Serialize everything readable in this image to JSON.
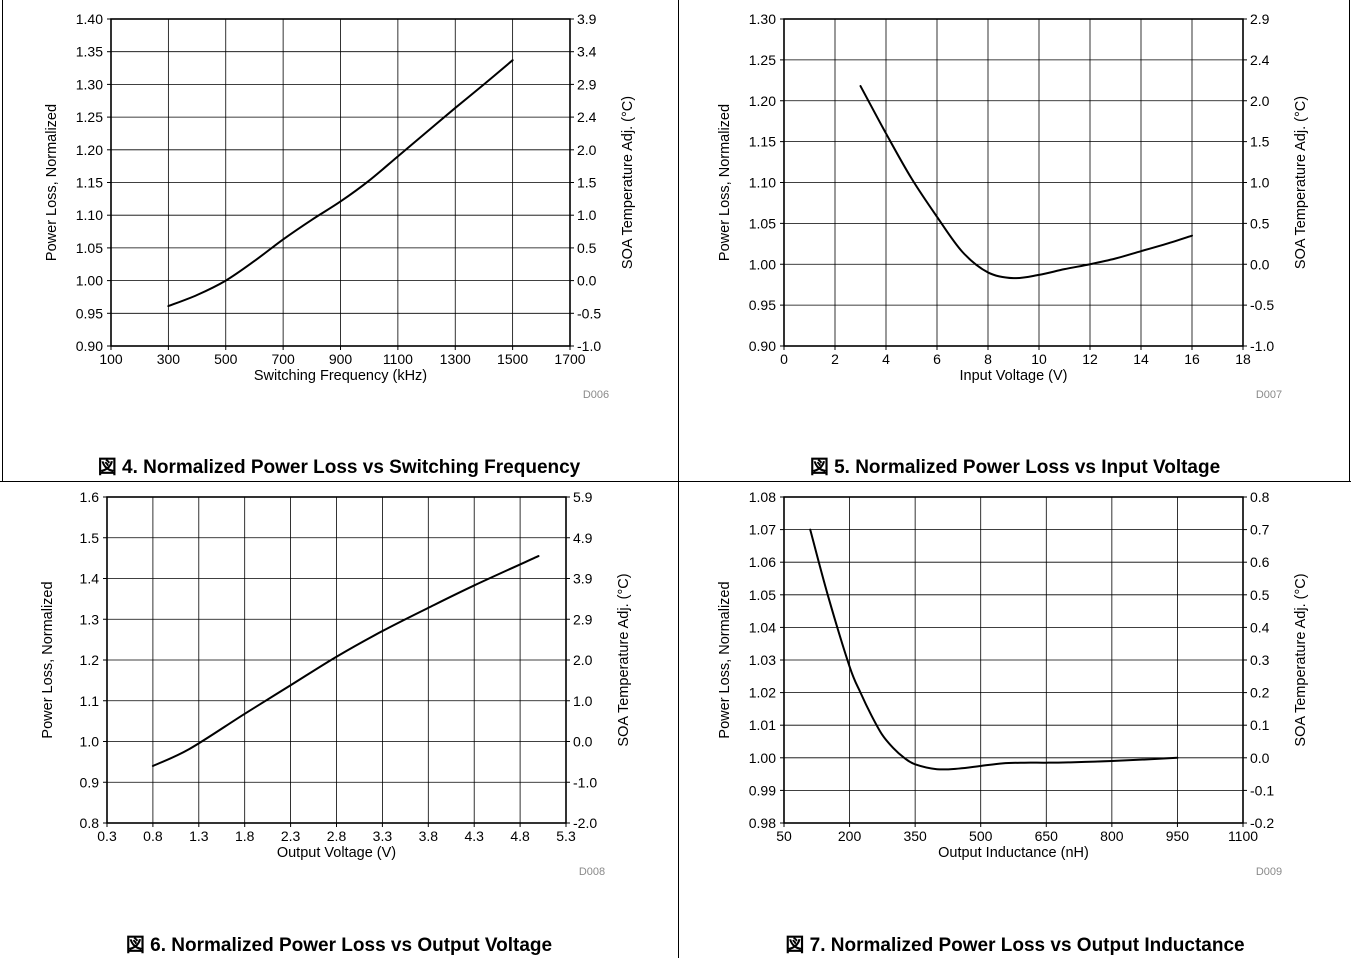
{
  "chart_data": [
    {
      "type": "line",
      "caption": "図 4. Normalized Power Loss vs Switching Frequency",
      "xlabel": "Switching Frequency (kHz)",
      "ylabel": "Power Loss, Normalized",
      "y2label": "SOA Temperature Adj. (°C)",
      "code": "D006",
      "xlim": [
        100,
        1700
      ],
      "ylim": [
        0.9,
        1.4
      ],
      "y2lim": [
        -1.0,
        3.9
      ],
      "xticks": [
        "100",
        "300",
        "500",
        "700",
        "900",
        "1100",
        "1300",
        "1500",
        "1700"
      ],
      "yticks": [
        "0.90",
        "0.95",
        "1.00",
        "1.05",
        "1.10",
        "1.15",
        "1.20",
        "1.25",
        "1.30",
        "1.35",
        "1.40"
      ],
      "y2ticks": [
        "-1.0",
        "-0.5",
        "0.0",
        "0.5",
        "1.0",
        "1.5",
        "2.0",
        "2.4",
        "2.9",
        "3.4",
        "3.9"
      ],
      "grid": true,
      "series": [
        {
          "x": [
            300,
            400,
            500,
            600,
            700,
            800,
            900,
            1000,
            1100,
            1200,
            1300,
            1400,
            1500
          ],
          "y": [
            0.961,
            0.978,
            1.0,
            1.03,
            1.063,
            1.093,
            1.121,
            1.153,
            1.19,
            1.227,
            1.264,
            1.3,
            1.337
          ]
        }
      ]
    },
    {
      "type": "line",
      "caption": "図 5. Normalized Power Loss vs Input Voltage",
      "xlabel": "Input Voltage (V)",
      "ylabel": "Power Loss, Normalized",
      "y2label": "SOA Temperature Adj. (°C)",
      "code": "D007",
      "xlim": [
        0,
        18
      ],
      "ylim": [
        0.9,
        1.3
      ],
      "y2lim": [
        -1.0,
        2.9
      ],
      "xticks": [
        "0",
        "2",
        "4",
        "6",
        "8",
        "10",
        "12",
        "14",
        "16",
        "18"
      ],
      "yticks": [
        "0.90",
        "0.95",
        "1.00",
        "1.05",
        "1.10",
        "1.15",
        "1.20",
        "1.25",
        "1.30"
      ],
      "y2ticks": [
        "-1.0",
        "-0.5",
        "0.0",
        "0.5",
        "1.0",
        "1.5",
        "2.0",
        "2.4",
        "2.9"
      ],
      "grid": true,
      "series": [
        {
          "x": [
            3,
            4,
            5,
            6,
            7,
            8,
            9,
            10,
            11,
            12,
            13,
            14,
            15,
            16
          ],
          "y": [
            1.218,
            1.16,
            1.105,
            1.058,
            1.015,
            0.99,
            0.983,
            0.987,
            0.994,
            1.0,
            1.007,
            1.016,
            1.025,
            1.035
          ]
        }
      ]
    },
    {
      "type": "line",
      "caption": "図 6. Normalized Power Loss vs Output Voltage",
      "xlabel": "Output Voltage (V)",
      "ylabel": "Power Loss, Normalized",
      "y2label": "SOA Temperature Adj. (°C)",
      "code": "D008",
      "xlim": [
        0.3,
        5.3
      ],
      "ylim": [
        0.8,
        1.6
      ],
      "y2lim": [
        -2.0,
        5.9
      ],
      "xticks": [
        "0.3",
        "0.8",
        "1.3",
        "1.8",
        "2.3",
        "2.8",
        "3.3",
        "3.8",
        "4.3",
        "4.8",
        "5.3"
      ],
      "yticks": [
        "0.8",
        "0.9",
        "1.0",
        "1.1",
        "1.2",
        "1.3",
        "1.4",
        "1.5",
        "1.6"
      ],
      "y2ticks": [
        "-2.0",
        "-1.0",
        "0.0",
        "1.0",
        "2.0",
        "2.9",
        "3.9",
        "4.9",
        "5.9"
      ],
      "grid": true,
      "series": [
        {
          "x": [
            0.8,
            1.2,
            1.8,
            2.3,
            2.8,
            3.3,
            3.8,
            4.3,
            5.0
          ],
          "y": [
            0.94,
            0.982,
            1.068,
            1.138,
            1.208,
            1.271,
            1.328,
            1.383,
            1.455
          ]
        }
      ]
    },
    {
      "type": "line",
      "caption": "図 7. Normalized Power Loss vs Output Inductance",
      "xlabel": "Output Inductance (nH)",
      "ylabel": "Power Loss, Normalized",
      "y2label": "SOA Temperature Adj. (°C)",
      "code": "D009",
      "xlim": [
        50,
        1100
      ],
      "ylim": [
        0.98,
        1.08
      ],
      "y2lim": [
        -0.2,
        0.8
      ],
      "xticks": [
        "50",
        "200",
        "350",
        "500",
        "650",
        "800",
        "950",
        "1100"
      ],
      "yticks": [
        "0.98",
        "0.99",
        "1.00",
        "1.01",
        "1.02",
        "1.03",
        "1.04",
        "1.05",
        "1.06",
        "1.07",
        "1.08"
      ],
      "y2ticks": [
        "-0.2",
        "-0.1",
        "0.0",
        "0.1",
        "0.2",
        "0.3",
        "0.4",
        "0.5",
        "0.6",
        "0.7",
        "0.8"
      ],
      "grid": true,
      "series": [
        {
          "x": [
            110,
            150,
            200,
            225,
            250,
            275,
            300,
            325,
            350,
            400,
            450,
            500,
            550,
            600,
            650,
            700,
            800,
            950
          ],
          "y": [
            1.07,
            1.05,
            1.028,
            1.02,
            1.013,
            1.007,
            1.003,
            1.0,
            0.998,
            0.9965,
            0.9967,
            0.9975,
            0.9983,
            0.9985,
            0.9985,
            0.9986,
            0.999,
            1.0
          ]
        }
      ]
    }
  ]
}
